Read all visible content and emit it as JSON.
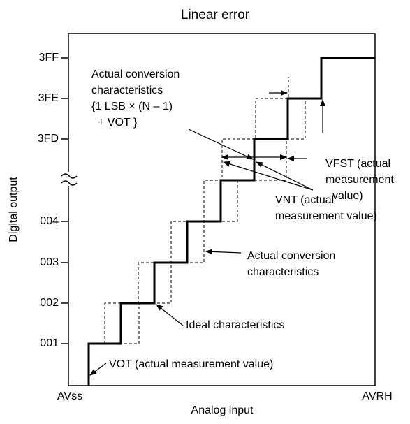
{
  "title": "Linear error",
  "y_axis": {
    "label": "Digital output",
    "ticks": [
      "3FF",
      "3FE",
      "3FD",
      "004",
      "003",
      "002",
      "001"
    ]
  },
  "x_axis": {
    "label": "Analog input",
    "start": "AVss",
    "end": "AVRH"
  },
  "annotations": [
    {
      "lines": [
        "Actual conversion",
        "characteristics",
        "{1 LSB × (N – 1)",
        "+ VOT }"
      ]
    },
    {
      "lines": [
        "VFST (actual",
        "measurement",
        "value)"
      ]
    },
    {
      "lines": [
        "VNT (actual",
        "measurement value)"
      ]
    },
    {
      "lines": [
        "Actual conversion",
        "characteristics"
      ]
    },
    {
      "lines": [
        "Ideal characteristics"
      ]
    },
    {
      "lines": [
        "VOT (actual measurement value)"
      ]
    }
  ]
}
